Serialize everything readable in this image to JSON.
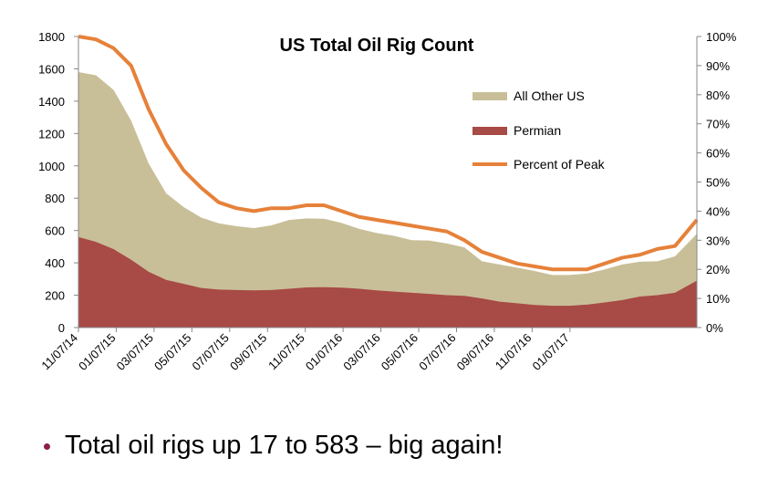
{
  "chart_data": {
    "type": "area",
    "title": "US Total Oil Rig Count",
    "left_axis": {
      "ticks": [
        "0",
        "200",
        "400",
        "600",
        "800",
        "1000",
        "1200",
        "1400",
        "1600",
        "1800"
      ],
      "range": [
        0,
        1800
      ]
    },
    "right_axis": {
      "ticks": [
        "0%",
        "10%",
        "20%",
        "30%",
        "40%",
        "50%",
        "60%",
        "70%",
        "80%",
        "90%",
        "100%"
      ],
      "range": [
        0,
        100
      ]
    },
    "x_tick_labels": [
      "11/07/14",
      "01/07/15",
      "03/07/15",
      "05/07/15",
      "07/07/15",
      "09/07/15",
      "11/07/15",
      "01/07/16",
      "03/07/16",
      "05/07/16",
      "07/07/16",
      "09/07/16",
      "11/07/16",
      "01/07/17"
    ],
    "x_weeks": [
      0,
      4,
      8,
      12,
      16,
      20,
      24,
      28,
      32,
      36,
      40,
      44,
      48,
      52,
      56,
      60,
      64,
      68,
      72,
      76,
      80,
      84,
      88,
      92,
      96,
      100,
      104,
      108,
      112,
      116,
      120,
      124,
      128,
      132,
      136,
      141
    ],
    "series": [
      {
        "name": "Permian",
        "color": "#a84a46",
        "values": [
          560,
          530,
          485,
          420,
          345,
          295,
          270,
          245,
          235,
          232,
          230,
          232,
          240,
          248,
          250,
          247,
          240,
          230,
          222,
          215,
          208,
          200,
          196,
          180,
          160,
          150,
          140,
          135,
          135,
          142,
          155,
          170,
          192,
          200,
          215,
          290
        ]
      },
      {
        "name": "All Other US",
        "color": "#c8bf98",
        "values": [
          1020,
          1030,
          985,
          860,
          670,
          535,
          475,
          435,
          410,
          395,
          385,
          400,
          425,
          427,
          423,
          400,
          370,
          355,
          345,
          325,
          330,
          320,
          300,
          230,
          230,
          220,
          210,
          190,
          190,
          192,
          205,
          220,
          215,
          210,
          225,
          290
        ]
      },
      {
        "name": "Percent of Peak",
        "color": "#e6813a",
        "axis": "right",
        "values": [
          100,
          99,
          96,
          90,
          75,
          63,
          54,
          48,
          43,
          41,
          40,
          41,
          41,
          42,
          42,
          40,
          38,
          37,
          36,
          35,
          34,
          33,
          30,
          26,
          24,
          22,
          21,
          20,
          20,
          20,
          22,
          24,
          25,
          27,
          28,
          37
        ]
      }
    ],
    "legend": [
      "All Other US",
      "Permian",
      "Percent of Peak"
    ],
    "legend_position": "top-right-inside"
  },
  "bullet": {
    "text": "Total oil rigs up 17 to 583 – big again!",
    "marker_color": "#8b1e4b"
  }
}
